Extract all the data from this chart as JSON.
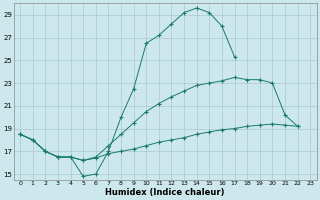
{
  "title": "",
  "xlabel": "Humidex (Indice chaleur)",
  "background_color": "#cce8ec",
  "grid_color": "#aac8cc",
  "line_color": "#1a7a6e",
  "xlim": [
    -0.5,
    23.5
  ],
  "ylim": [
    14.5,
    30.0
  ],
  "yticks": [
    15,
    17,
    19,
    21,
    23,
    25,
    27,
    29
  ],
  "xticks": [
    0,
    1,
    2,
    3,
    4,
    5,
    6,
    7,
    8,
    9,
    10,
    11,
    12,
    13,
    14,
    15,
    16,
    17,
    18,
    19,
    20,
    21,
    22,
    23
  ],
  "line1_x": [
    0,
    1,
    2,
    3,
    4,
    5,
    6,
    7,
    8,
    9,
    10,
    11,
    12,
    13,
    14,
    15,
    16,
    17
  ],
  "line1_y": [
    18.5,
    18.0,
    17.0,
    16.5,
    16.5,
    14.8,
    15.0,
    17.0,
    20.0,
    22.5,
    26.5,
    27.2,
    28.2,
    29.2,
    29.6,
    29.2,
    28.0,
    25.3
  ],
  "line2_x": [
    0,
    1,
    2,
    3,
    4,
    5,
    6,
    7,
    8,
    9,
    10,
    11,
    12,
    13,
    14,
    15,
    16,
    17,
    18,
    19,
    20,
    21,
    22
  ],
  "line2_y": [
    18.5,
    18.0,
    17.0,
    16.5,
    16.5,
    16.2,
    16.5,
    17.5,
    18.5,
    19.5,
    20.5,
    21.2,
    21.8,
    22.3,
    22.8,
    23.0,
    23.2,
    23.5,
    23.3,
    23.3,
    23.0,
    20.2,
    19.2
  ],
  "line3_x": [
    0,
    1,
    2,
    3,
    4,
    5,
    6,
    7,
    8,
    9,
    10,
    11,
    12,
    13,
    14,
    15,
    16,
    17,
    18,
    19,
    20,
    21,
    22
  ],
  "line3_y": [
    18.5,
    18.0,
    17.0,
    16.5,
    16.5,
    16.2,
    16.4,
    16.8,
    17.0,
    17.2,
    17.5,
    17.8,
    18.0,
    18.2,
    18.5,
    18.7,
    18.9,
    19.0,
    19.2,
    19.3,
    19.4,
    19.3,
    19.2
  ]
}
